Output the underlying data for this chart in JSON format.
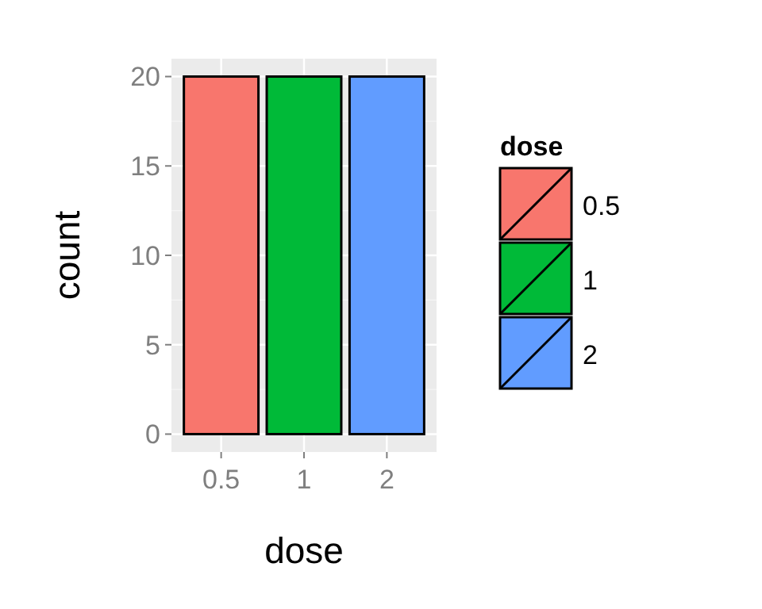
{
  "chart_data": {
    "type": "bar",
    "xlabel": "dose",
    "ylabel": "count",
    "legend_title": "dose",
    "categories": [
      "0.5",
      "1",
      "2"
    ],
    "series": [
      {
        "name": "0.5",
        "color": "#f8766d",
        "values": [
          20,
          null,
          null
        ]
      },
      {
        "name": "1",
        "color": "#00ba38",
        "values": [
          null,
          20,
          null
        ]
      },
      {
        "name": "2",
        "color": "#619cff",
        "values": [
          null,
          null,
          20
        ]
      }
    ],
    "ylim": [
      -1,
      21
    ],
    "yticks": [
      0,
      5,
      10,
      15,
      20
    ],
    "grid": true,
    "legend": "right"
  }
}
